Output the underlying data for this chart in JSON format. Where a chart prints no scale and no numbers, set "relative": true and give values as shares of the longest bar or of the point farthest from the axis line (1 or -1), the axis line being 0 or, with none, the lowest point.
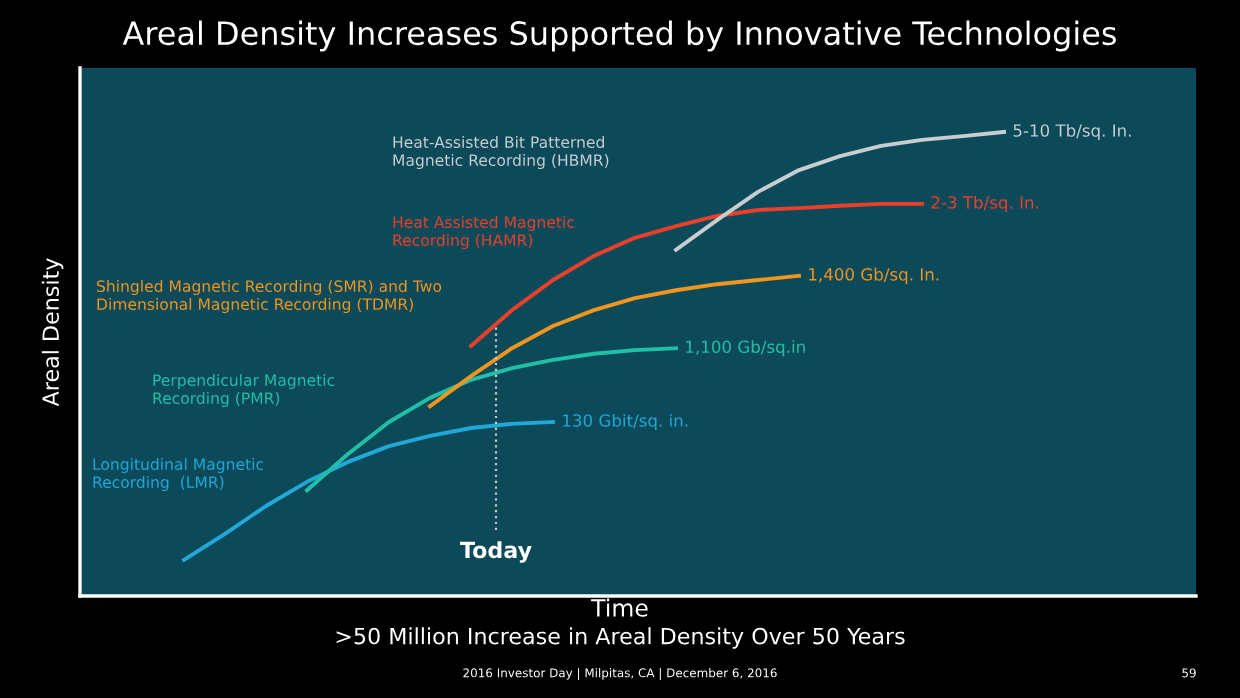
{
  "chart_data": {
    "type": "line",
    "title": "Areal Density Increases Supported by Innovative Technologies",
    "subtitle": ">50 Million Increase in Areal Density Over 50 Years",
    "xlabel": "Time",
    "ylabel": "Areal Density",
    "relative": true,
    "grid": false,
    "legend": false,
    "marker": "none",
    "line_style": "solid",
    "categories": [
      null,
      null,
      null,
      null,
      null,
      null,
      null,
      null,
      null,
      null,
      null,
      null,
      null,
      null,
      null,
      null,
      null,
      null,
      null,
      null,
      null
    ],
    "series": [
      {
        "name": "Longitudinal Magnetic\nRecording  (LMR)",
        "color": "#1fa8d8",
        "values": [
          0.078,
          0.134,
          0.194,
          0.246,
          0.289,
          0.323,
          0.345,
          0.362,
          0.371,
          0.375,
          null,
          null,
          null,
          null,
          null,
          null,
          null,
          null,
          null,
          null,
          null
        ]
      },
      {
        "name": "Perpendicular Magnetic\nRecording (PMR)",
        "color": "#20c0a8",
        "values": [
          null,
          null,
          null,
          0.228,
          0.306,
          0.375,
          0.427,
          0.466,
          0.491,
          0.509,
          0.522,
          0.53,
          0.534,
          null,
          null,
          null,
          null,
          null,
          null,
          null,
          null
        ]
      },
      {
        "name": "Shingled Magnetic Recording (SMR) and Two\nDimensional Magnetic Recording (TDMR)",
        "color": "#f0951e",
        "values": [
          null,
          null,
          null,
          null,
          null,
          null,
          0.409,
          0.474,
          0.534,
          0.582,
          0.616,
          0.642,
          0.659,
          0.672,
          0.681,
          0.69,
          null,
          null,
          null,
          null,
          null
        ]
      },
      {
        "name": "Heat Assisted Magnetic\nRecording (HAMR)",
        "color": "#e8402a",
        "values": [
          null,
          null,
          null,
          null,
          null,
          null,
          null,
          0.539,
          0.616,
          0.681,
          0.733,
          0.772,
          0.797,
          0.819,
          0.832,
          0.836,
          0.841,
          0.845,
          0.845,
          null,
          null
        ]
      },
      {
        "name": "Heat-Assisted Bit Patterned\nMagnetic Recording (HBMR)",
        "color": "#c8cdd0",
        "values": [
          null,
          null,
          null,
          null,
          null,
          null,
          null,
          null,
          null,
          null,
          null,
          null,
          0.746,
          0.81,
          0.871,
          0.918,
          0.948,
          0.97,
          0.983,
          0.991,
          1.0
        ]
      }
    ],
    "annotations": [
      "130 Gbit/sq. in.",
      "1,100 Gb/sq.in",
      "1,400 Gb/sq. In.",
      "2-3 Tb/sq. In.",
      "5-10 Tb/sq. In.",
      "Today",
      "2016 Investor Day | Milpitas, CA | December 6, 2016",
      "59"
    ]
  }
}
